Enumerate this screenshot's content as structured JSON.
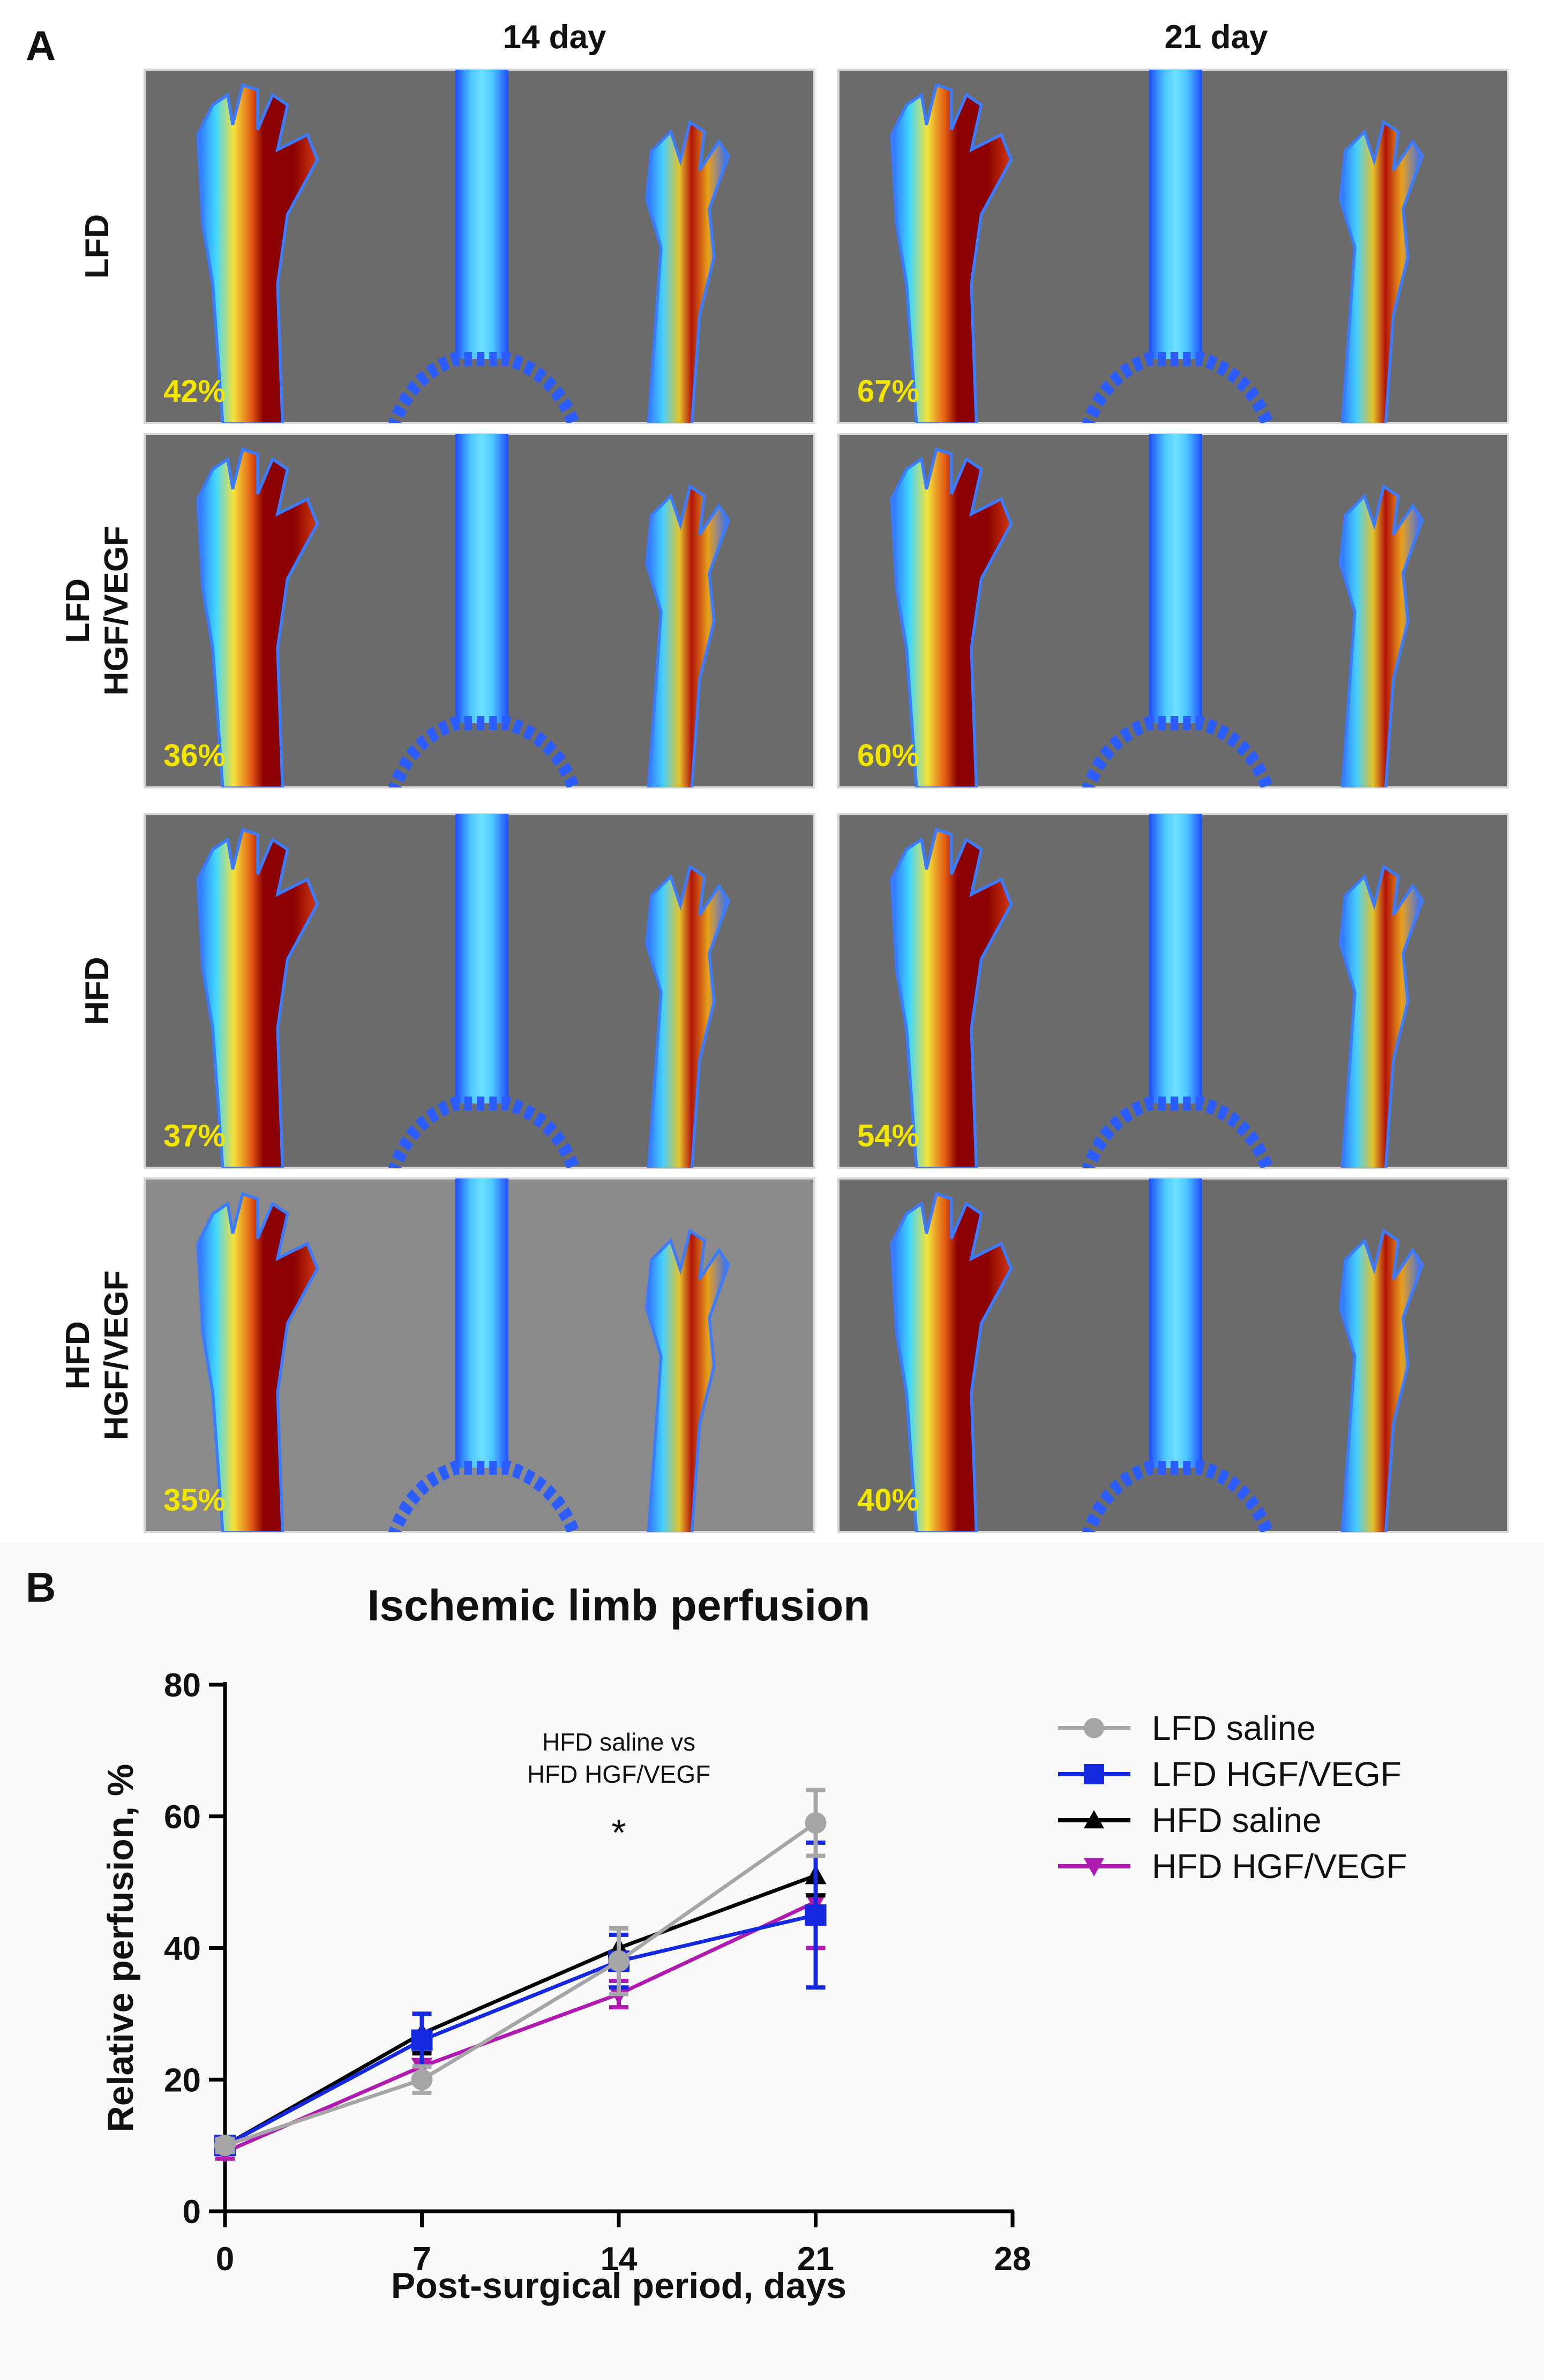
{
  "panel_a": {
    "label": "A",
    "columns": [
      "14 day",
      "21 day"
    ],
    "rows": [
      {
        "label_lines": [
          "LFD"
        ],
        "percents": [
          "42%",
          "67%"
        ]
      },
      {
        "label_lines": [
          "LFD",
          "HGF/VEGF"
        ],
        "percents": [
          "36%",
          "60%"
        ]
      },
      {
        "label_lines": [
          "HFD"
        ],
        "percents": [
          "37%",
          "54%"
        ]
      },
      {
        "label_lines": [
          "HFD",
          "HGF/VEGF"
        ],
        "percents": [
          "35%",
          "40%"
        ]
      }
    ],
    "colors": {
      "background": "#6b6b6b",
      "background_light": "#8a8a8a",
      "percent_text": "#f2e600",
      "perfusion_high": "#8b0000",
      "perfusion_low": "#1a4fd8"
    }
  },
  "chart_data": {
    "panel_label": "B",
    "type": "line",
    "title": "Ischemic limb perfusion",
    "xlabel": "Post-surgical period, days",
    "ylabel": "Relative perfusion, %",
    "x": [
      0,
      7,
      14,
      21
    ],
    "xlim": [
      0,
      28
    ],
    "ylim": [
      0,
      80
    ],
    "xticks": [
      "0",
      "7",
      "14",
      "21",
      "28"
    ],
    "yticks": [
      "0",
      "20",
      "40",
      "60",
      "80"
    ],
    "series": [
      {
        "name": "LFD saline",
        "color": "#a6a6a6",
        "marker": "circle",
        "values": [
          10,
          20,
          38,
          59
        ],
        "errors": [
          1,
          2,
          5,
          5
        ]
      },
      {
        "name": "LFD HGF/VEGF",
        "color": "#1428e0",
        "marker": "square",
        "values": [
          10,
          26,
          38,
          45
        ],
        "errors": [
          1,
          4,
          4,
          11
        ]
      },
      {
        "name": "HFD saline",
        "color": "#000000",
        "marker": "triangle-up",
        "values": [
          10,
          27,
          40,
          51
        ],
        "errors": [
          1,
          3,
          3,
          3
        ]
      },
      {
        "name": "HFD HGF/VEGF",
        "color": "#b01ab0",
        "marker": "triangle-down",
        "values": [
          9,
          22,
          33,
          47
        ],
        "errors": [
          1,
          2,
          2,
          7
        ]
      }
    ],
    "annotation": {
      "lines": [
        "HFD saline vs",
        "HFD HGF/VEGF"
      ],
      "marker": "*",
      "x": 14
    },
    "legend_position": "right"
  }
}
